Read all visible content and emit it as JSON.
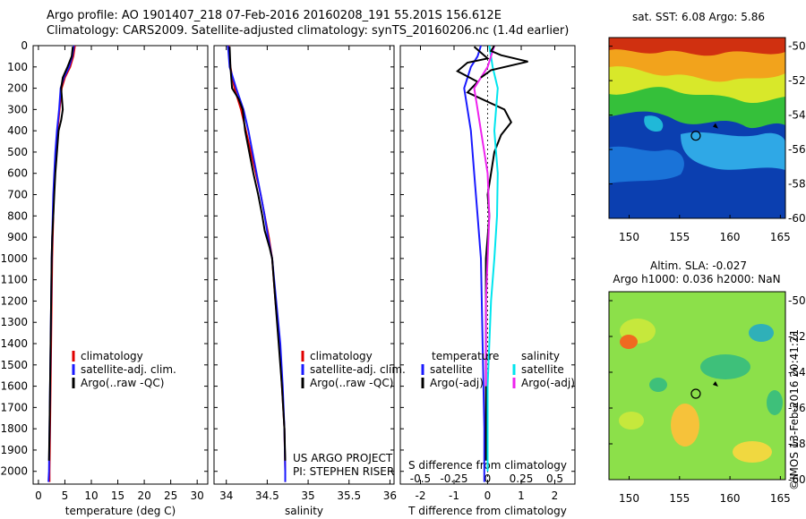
{
  "header": {
    "line1": "Argo profile: AO 1901407_218 07-Feb-2016 20160208_191 55.201S 156.612E",
    "line2": "Climatology: CARS2009. Satellite-adjusted climatology: synTS_20160206.nc (1.4d earlier)"
  },
  "stamp": "©IMOS 13-Feb-2016 20:41:21",
  "colors": {
    "climatology": "#e00000",
    "satellite": "#1a1aff",
    "argo": "#000000",
    "cyan": "#00e5ee",
    "magenta": "#ee22ee"
  },
  "chart_data": [
    {
      "type": "line",
      "xlabel": "temperature (deg C)",
      "ylabel": "",
      "xlim": [
        -1,
        32
      ],
      "ylim": [
        2060,
        0
      ],
      "xticks": [
        0,
        5,
        10,
        15,
        20,
        25,
        30
      ],
      "yticks": [
        0,
        100,
        200,
        300,
        400,
        500,
        600,
        700,
        800,
        900,
        1000,
        1100,
        1200,
        1300,
        1400,
        1500,
        1600,
        1700,
        1800,
        1900,
        2000
      ],
      "legend": [
        "climatology",
        "satellite-adj. clim.",
        "Argo(..raw -QC)"
      ],
      "legend_placement": "lower-middle",
      "series": [
        {
          "name": "climatology",
          "color": "#e00000",
          "points": [
            [
              6.9,
              0
            ],
            [
              6.6,
              50
            ],
            [
              6.0,
              100
            ],
            [
              5.0,
              150
            ],
            [
              4.4,
              200
            ],
            [
              4.0,
              300
            ],
            [
              3.6,
              400
            ],
            [
              3.3,
              500
            ],
            [
              3.1,
              600
            ],
            [
              2.9,
              700
            ],
            [
              2.8,
              800
            ],
            [
              2.7,
              900
            ],
            [
              2.6,
              1000
            ],
            [
              2.5,
              1200
            ],
            [
              2.4,
              1400
            ],
            [
              2.3,
              1600
            ],
            [
              2.2,
              1800
            ],
            [
              2.1,
              2000
            ],
            [
              2.1,
              2050
            ]
          ]
        },
        {
          "name": "satellite-adj. clim.",
          "color": "#1a1aff",
          "points": [
            [
              6.7,
              0
            ],
            [
              6.4,
              50
            ],
            [
              5.8,
              100
            ],
            [
              4.8,
              150
            ],
            [
              4.2,
              200
            ],
            [
              3.9,
              300
            ],
            [
              3.5,
              400
            ],
            [
              3.2,
              500
            ],
            [
              3.0,
              600
            ],
            [
              2.8,
              700
            ],
            [
              2.7,
              800
            ],
            [
              2.6,
              900
            ],
            [
              2.5,
              1000
            ],
            [
              2.4,
              1200
            ],
            [
              2.3,
              1400
            ],
            [
              2.2,
              1600
            ],
            [
              2.1,
              1800
            ],
            [
              2.0,
              2000
            ],
            [
              1.9,
              2050
            ]
          ]
        },
        {
          "name": "Argo(..raw -QC)",
          "color": "#000000",
          "points": [
            [
              6.5,
              5
            ],
            [
              6.3,
              50
            ],
            [
              5.5,
              100
            ],
            [
              4.6,
              150
            ],
            [
              4.3,
              200
            ],
            [
              4.6,
              300
            ],
            [
              4.3,
              350
            ],
            [
              3.8,
              400
            ],
            [
              3.5,
              500
            ],
            [
              3.2,
              600
            ],
            [
              3.0,
              700
            ],
            [
              2.8,
              800
            ],
            [
              2.6,
              900
            ],
            [
              2.5,
              1000
            ],
            [
              2.4,
              1200
            ],
            [
              2.3,
              1400
            ],
            [
              2.2,
              1600
            ],
            [
              2.1,
              1800
            ],
            [
              2.0,
              1950
            ]
          ]
        }
      ]
    },
    {
      "type": "line",
      "xlabel": "salinity",
      "ylabel": "",
      "xlim": [
        33.85,
        36.05
      ],
      "ylim": [
        2060,
        0
      ],
      "xticks": [
        34,
        34.5,
        35,
        35.5,
        36
      ],
      "legend": [
        "climatology",
        "satellite-adj. clim.",
        "Argo(..raw -QC)"
      ],
      "legend_placement": "lower-right",
      "annotations": [
        "US ARGO PROJECT",
        "PI: STEPHEN RISER"
      ],
      "series": [
        {
          "name": "climatology",
          "color": "#e00000",
          "points": [
            [
              34.03,
              0
            ],
            [
              34.05,
              100
            ],
            [
              34.1,
              200
            ],
            [
              34.18,
              300
            ],
            [
              34.24,
              400
            ],
            [
              34.3,
              500
            ],
            [
              34.36,
              600
            ],
            [
              34.42,
              700
            ],
            [
              34.47,
              800
            ],
            [
              34.52,
              900
            ],
            [
              34.56,
              1000
            ],
            [
              34.6,
              1200
            ],
            [
              34.65,
              1400
            ],
            [
              34.68,
              1600
            ],
            [
              34.71,
              1800
            ],
            [
              34.72,
              2000
            ],
            [
              34.72,
              2050
            ]
          ]
        },
        {
          "name": "satellite-adj. clim.",
          "color": "#1a1aff",
          "points": [
            [
              34.02,
              0
            ],
            [
              34.04,
              100
            ],
            [
              34.12,
              200
            ],
            [
              34.21,
              300
            ],
            [
              34.27,
              400
            ],
            [
              34.32,
              500
            ],
            [
              34.37,
              600
            ],
            [
              34.42,
              700
            ],
            [
              34.47,
              800
            ],
            [
              34.51,
              900
            ],
            [
              34.56,
              1000
            ],
            [
              34.61,
              1200
            ],
            [
              34.66,
              1400
            ],
            [
              34.69,
              1600
            ],
            [
              34.71,
              1800
            ],
            [
              34.72,
              2000
            ],
            [
              34.72,
              2050
            ]
          ]
        },
        {
          "name": "Argo(..raw -QC)",
          "color": "#000000",
          "points": [
            [
              34.04,
              5
            ],
            [
              34.05,
              100
            ],
            [
              34.07,
              200
            ],
            [
              34.15,
              250
            ],
            [
              34.2,
              300
            ],
            [
              34.23,
              400
            ],
            [
              34.28,
              500
            ],
            [
              34.33,
              600
            ],
            [
              34.39,
              700
            ],
            [
              34.44,
              800
            ],
            [
              34.47,
              870
            ],
            [
              34.53,
              950
            ],
            [
              34.56,
              1000
            ],
            [
              34.6,
              1200
            ],
            [
              34.64,
              1400
            ],
            [
              34.68,
              1600
            ],
            [
              34.71,
              1800
            ],
            [
              34.72,
              1950
            ]
          ]
        }
      ]
    },
    {
      "type": "line",
      "xlabel": "T difference from climatology",
      "xlabel_top": "S difference from climatology",
      "ylabel": "",
      "xlim": [
        -2.6,
        2.6
      ],
      "ylim": [
        2060,
        0
      ],
      "xticks": [
        -2,
        -1,
        0,
        1,
        2
      ],
      "xticks_top": [
        -0.5,
        -0.25,
        0,
        0.25,
        0.5
      ],
      "legend_groups": [
        {
          "title": "temperature",
          "entries": [
            "satellite",
            "Argo(-adj)"
          ]
        },
        {
          "title": "salinity",
          "entries": [
            "satellite",
            "Argo(-adj)"
          ]
        }
      ],
      "legend_placement": "lower",
      "series": [
        {
          "name": "temperature satellite",
          "color": "#1a1aff",
          "points": [
            [
              -0.2,
              0
            ],
            [
              -0.3,
              50
            ],
            [
              -0.5,
              100
            ],
            [
              -0.7,
              200
            ],
            [
              -0.5,
              400
            ],
            [
              -0.4,
              600
            ],
            [
              -0.3,
              800
            ],
            [
              -0.2,
              1000
            ],
            [
              -0.15,
              1400
            ],
            [
              -0.1,
              1800
            ],
            [
              -0.1,
              2050
            ]
          ]
        },
        {
          "name": "temperature Argo(-adj)",
          "color": "#000000",
          "points": [
            [
              -0.4,
              5
            ],
            [
              0.0,
              60
            ],
            [
              -0.6,
              80
            ],
            [
              -0.9,
              120
            ],
            [
              -0.3,
              170
            ],
            [
              -0.6,
              220
            ],
            [
              0.5,
              300
            ],
            [
              0.7,
              360
            ],
            [
              0.4,
              420
            ],
            [
              0.2,
              500
            ],
            [
              0.1,
              600
            ],
            [
              0.0,
              700
            ],
            [
              0.05,
              800
            ],
            [
              0.0,
              900
            ],
            [
              -0.05,
              1000
            ],
            [
              -0.05,
              1200
            ],
            [
              -0.05,
              1400
            ],
            [
              -0.05,
              1600
            ],
            [
              -0.05,
              1800
            ],
            [
              -0.05,
              1950
            ]
          ]
        },
        {
          "name": "salinity satellite",
          "color": "#00e5ee",
          "points": [
            [
              0.05,
              0
            ],
            [
              0.15,
              100
            ],
            [
              0.3,
              200
            ],
            [
              0.25,
              300
            ],
            [
              0.2,
              400
            ],
            [
              0.25,
              500
            ],
            [
              0.3,
              600
            ],
            [
              0.28,
              800
            ],
            [
              0.2,
              1000
            ],
            [
              0.1,
              1200
            ],
            [
              0.05,
              1400
            ],
            [
              0.0,
              1600
            ],
            [
              0.0,
              1800
            ],
            [
              0.0,
              2000
            ]
          ]
        },
        {
          "name": "salinity Argo(-adj)",
          "color": "#ee22ee",
          "points": [
            [
              0.2,
              0
            ],
            [
              0.0,
              100
            ],
            [
              -0.4,
              200
            ],
            [
              -0.3,
              300
            ],
            [
              -0.2,
              400
            ],
            [
              -0.1,
              500
            ],
            [
              0.0,
              600
            ],
            [
              0.05,
              800
            ],
            [
              0.0,
              1000
            ],
            [
              -0.05,
              1200
            ],
            [
              -0.05,
              1400
            ],
            [
              -0.05,
              1600
            ]
          ]
        },
        {
          "name": "salinity spike",
          "color": "#000000",
          "points": [
            [
              0.2,
              0
            ],
            [
              0.1,
              25
            ],
            [
              0.4,
              45
            ],
            [
              1.2,
              75
            ],
            [
              0.1,
              115
            ],
            [
              -0.2,
              150
            ]
          ]
        }
      ]
    },
    {
      "type": "heatmap",
      "title": "sat. SST: 6.08 Argo: 5.86",
      "xlim": [
        148,
        165.5
      ],
      "ylim": [
        -60,
        -49.5
      ],
      "xticks": [
        150,
        155,
        160,
        165
      ],
      "yticks": [
        -50,
        -52,
        -54,
        -56,
        -58,
        -60
      ],
      "marker": {
        "lon": 156.612,
        "lat": -55.201
      }
    },
    {
      "type": "heatmap",
      "title": "Altim. SLA: -0.027",
      "subtitle": "Argo h1000: 0.036 h2000: NaN",
      "xlim": [
        148,
        165.5
      ],
      "ylim": [
        -60,
        -49.5
      ],
      "xticks": [
        150,
        155,
        160,
        165
      ],
      "yticks": [
        -50,
        -52,
        -54,
        -56,
        -58,
        -60
      ],
      "marker": {
        "lon": 156.612,
        "lat": -55.201
      }
    }
  ]
}
